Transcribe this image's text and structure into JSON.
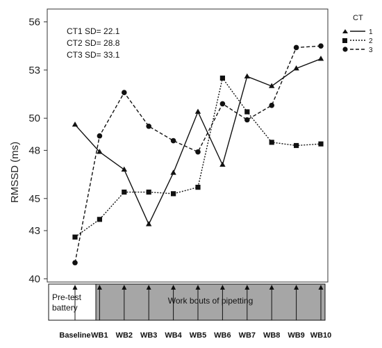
{
  "chart_data": {
    "type": "line",
    "title": "",
    "xlabel": "",
    "ylabel": "RMSSD (ms)",
    "categories": [
      "Baseline",
      "WB1",
      "WB2",
      "WB3",
      "WB4",
      "WB5",
      "WB6",
      "WB7",
      "WB8",
      "WB9",
      "WB10"
    ],
    "yticks": [
      "40",
      "43",
      "45",
      "48",
      "50",
      "53",
      "56"
    ],
    "ylim": [
      39.8,
      56.8
    ],
    "grid": false,
    "legend": {
      "title": "CT",
      "position": "top-right",
      "entries": [
        "1",
        "2",
        "3"
      ]
    },
    "annotations": [
      "CT1 SD= 22.1",
      "CT2 SD= 28.8",
      "CT3 SD= 33.1"
    ],
    "timeline": {
      "pre_label_line1": "Pre-test",
      "pre_label_line2": "battery",
      "work_label": "Work bouts of pipetting"
    },
    "series": [
      {
        "name": "1",
        "marker": "triangle",
        "line": "solid",
        "values": [
          49.6,
          47.9,
          46.8,
          43.4,
          46.6,
          50.4,
          47.1,
          52.6,
          52.0,
          53.1,
          53.7
        ]
      },
      {
        "name": "2",
        "marker": "square",
        "line": "dotted",
        "values": [
          42.6,
          43.7,
          45.4,
          45.4,
          45.3,
          45.7,
          52.5,
          50.4,
          48.5,
          48.3,
          48.4
        ]
      },
      {
        "name": "3",
        "marker": "circle",
        "line": "dashed",
        "values": [
          41.0,
          48.9,
          51.6,
          49.5,
          48.6,
          47.9,
          50.9,
          49.9,
          50.8,
          54.4,
          54.5
        ]
      }
    ]
  }
}
